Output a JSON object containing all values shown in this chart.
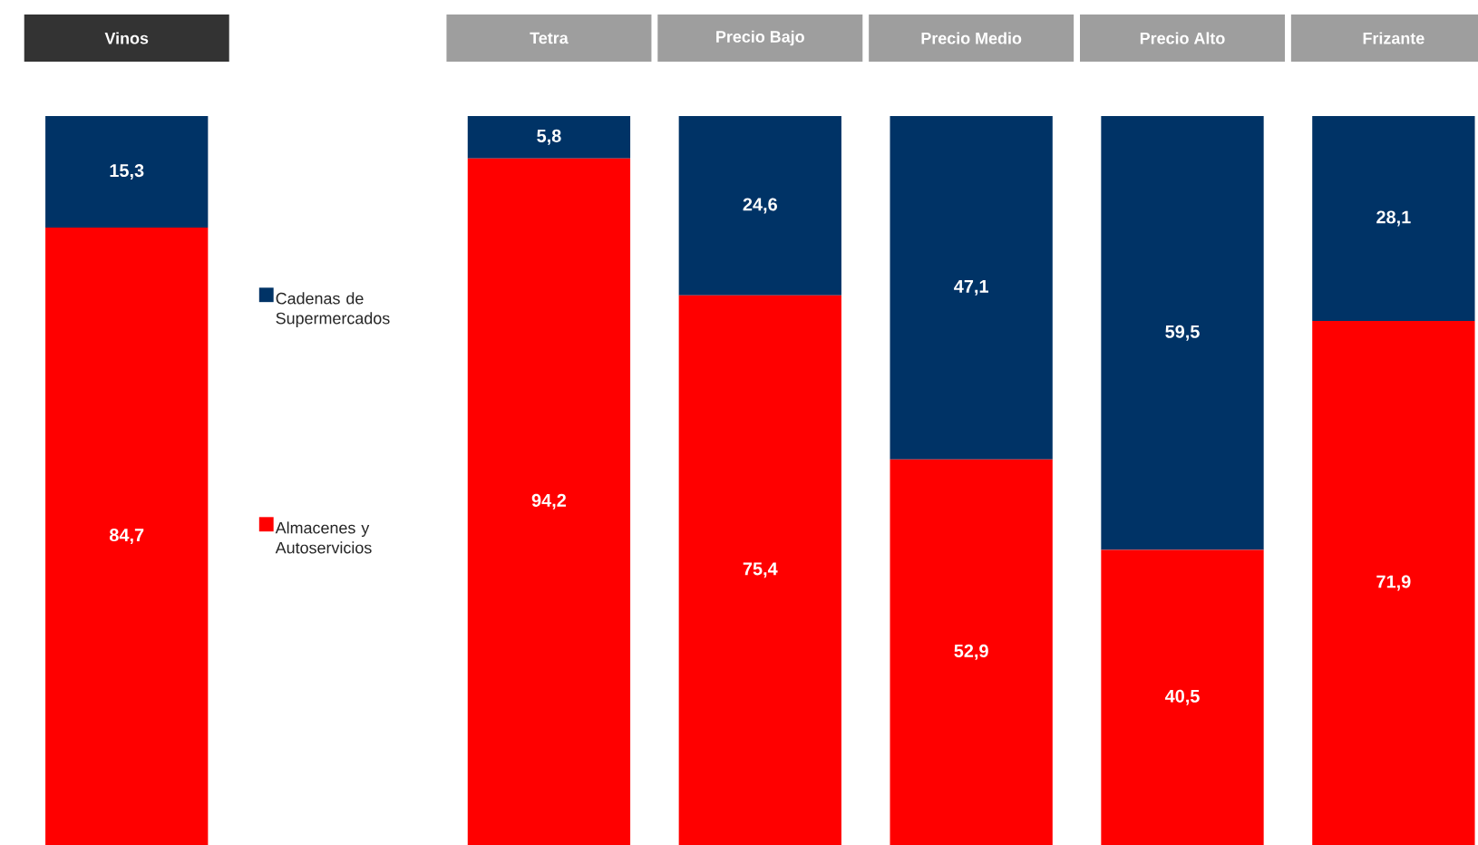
{
  "chart_data": {
    "type": "bar",
    "stacked": true,
    "legend": "left",
    "categories": [
      "Vinos",
      null,
      "Tetra",
      "Precio Bajo",
      "Precio Medio",
      "Precio Alto",
      "Frizante"
    ],
    "series": [
      {
        "name": "Almacenes y Autoservicios",
        "color": "#ff0000",
        "values": [
          84.7,
          null,
          94.2,
          75.4,
          52.9,
          40.5,
          71.9
        ],
        "value_labels": [
          "84,7",
          null,
          "94,2",
          "75,4",
          "52,9",
          "40,5",
          "71,9"
        ]
      },
      {
        "name": "Cadenas de Supermercados",
        "color": "#003366",
        "values": [
          15.3,
          null,
          5.8,
          24.6,
          47.1,
          59.5,
          28.1
        ],
        "value_labels": [
          "15,3",
          null,
          "5,8",
          "24,6",
          "47,1",
          "59,5",
          "28,1"
        ]
      }
    ]
  }
}
